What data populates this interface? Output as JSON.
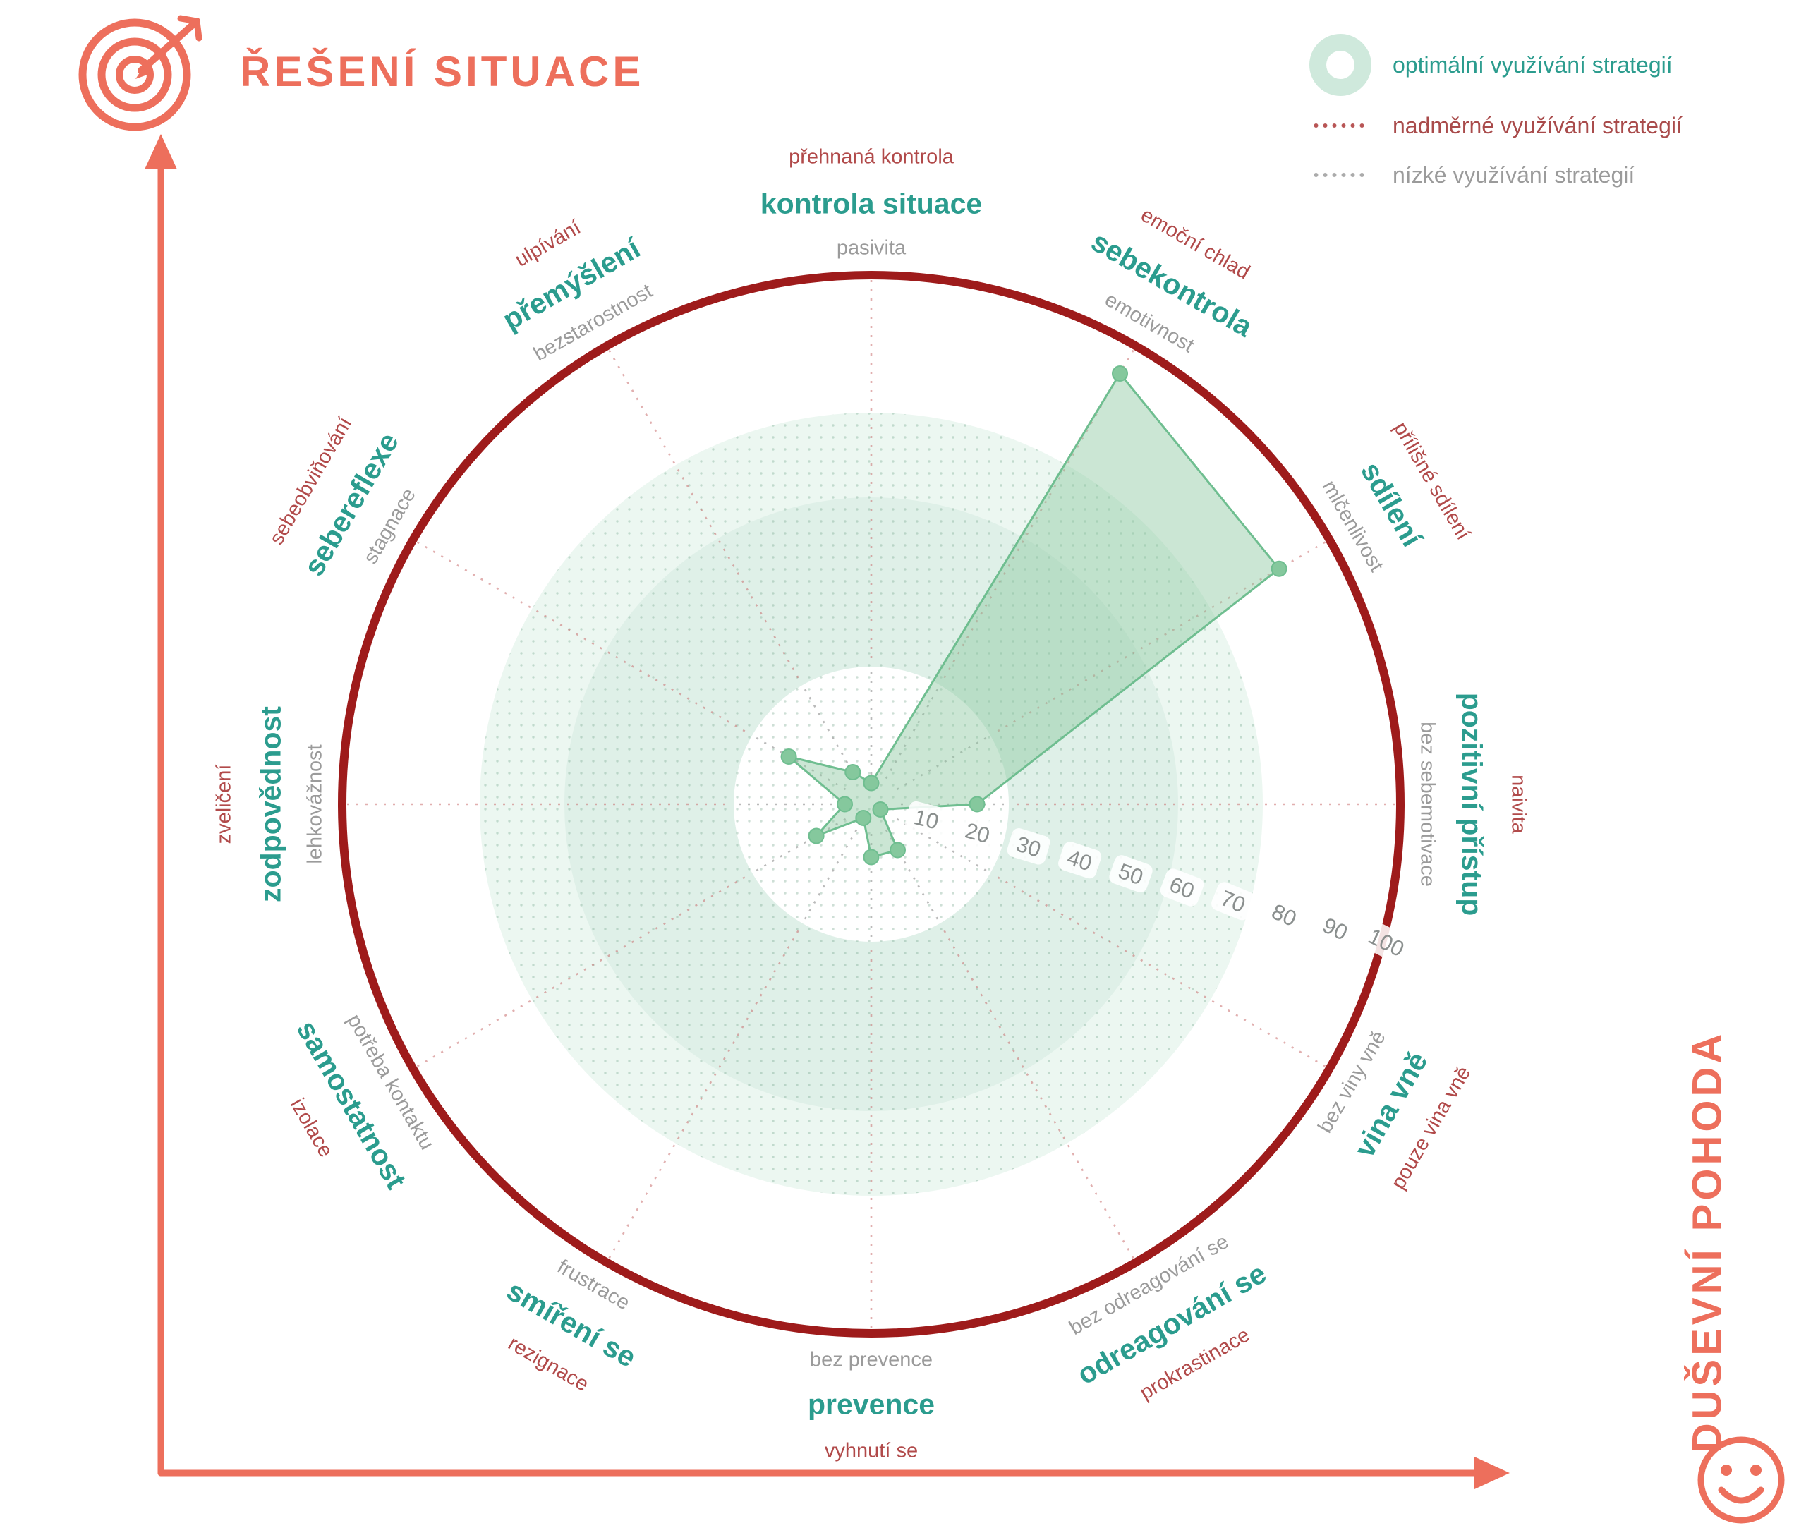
{
  "header": {
    "title": "ŘEŠENÍ SITUACE",
    "icon": "target-dart-icon"
  },
  "bottom_axis": {
    "title": "DUŠEVNÍ POHODA",
    "icon": "smiley-icon"
  },
  "legend": {
    "items": [
      {
        "label": "optimální využívání strategií",
        "icon": "optimal-zone-donut-icon",
        "style": "mint-donut"
      },
      {
        "label": "nadměrné využívání strategií",
        "icon": "overuse-dotted-line-icon",
        "style": "red-dotted"
      },
      {
        "label": "nízké využívání strategií",
        "icon": "underuse-dotted-line-icon",
        "style": "gray-dotted"
      }
    ]
  },
  "chart_data": {
    "type": "radar",
    "max": 100,
    "scale_ticks": [
      10,
      20,
      30,
      40,
      50,
      60,
      70,
      80,
      90,
      100
    ],
    "scale_tick_angle_deg": 15,
    "optimal_zone": {
      "inner": 26,
      "split": 58,
      "outer": 74
    },
    "axes": [
      {
        "strategy": "kontrola situace",
        "overuse": "přehnaná kontrola",
        "underuse": "pasivita",
        "value": 4,
        "angle": -90,
        "label_rot": 0
      },
      {
        "strategy": "sebekontrola",
        "overuse": "emoční chlad",
        "underuse": "emotivnost",
        "value": 94,
        "angle": -60,
        "label_rot": 30
      },
      {
        "strategy": "sdílení",
        "overuse": "přílišné sdílení",
        "underuse": "mlčenlivost",
        "value": 89,
        "angle": -30,
        "label_rot": 60
      },
      {
        "strategy": "pozitivní přístup",
        "overuse": "naivita",
        "underuse": "bez sebemotivace",
        "value": 20,
        "angle": 0,
        "label_rot": 90
      },
      {
        "strategy": "vina vně",
        "overuse": "pouze vina vně",
        "underuse": "bez viny vně",
        "value": 2,
        "angle": 30,
        "label_rot": -60
      },
      {
        "strategy": "odreagování se",
        "overuse": "prokrastinace",
        "underuse": "bez odreagování se",
        "value": 10,
        "angle": 60,
        "label_rot": -30
      },
      {
        "strategy": "prevence",
        "overuse": "vyhnutí se",
        "underuse": "bez prevence",
        "value": 10,
        "angle": 90,
        "label_rot": 0
      },
      {
        "strategy": "smíření se",
        "overuse": "rezignace",
        "underuse": "frustrace",
        "value": 3,
        "angle": 120,
        "label_rot": 30
      },
      {
        "strategy": "samostatnost",
        "overuse": "izolace",
        "underuse": "potřeba kontaktu",
        "value": 12,
        "angle": 150,
        "label_rot": 60
      },
      {
        "strategy": "zodpovědnost",
        "overuse": "zveličení",
        "underuse": "lehkovážnost",
        "value": 5,
        "angle": 180,
        "label_rot": -90
      },
      {
        "strategy": "sebereflexe",
        "overuse": "sebeobviňování",
        "underuse": "stagnace",
        "value": 18,
        "angle": 210,
        "label_rot": -60
      },
      {
        "strategy": "přemýšlení",
        "overuse": "ulpívání",
        "underuse": "bezstarostnost",
        "value": 7,
        "angle": 240,
        "label_rot": -30
      }
    ]
  },
  "colors": {
    "coral": "#ed6f5c",
    "max_ring_red": "#9e1b1b",
    "overuse_red": "#b14a4a",
    "strategy_teal": "#2b9c8e",
    "underuse_gray": "#9b9b9b",
    "tick_gray": "#8a8f8e",
    "zone_mint_deep": "#dff0e8",
    "zone_mint_light": "#ecf7f1",
    "series_fill": "rgba(140,200,160,0.45)",
    "series_stroke": "#6fbe90",
    "series_dot": "#85c89d"
  }
}
